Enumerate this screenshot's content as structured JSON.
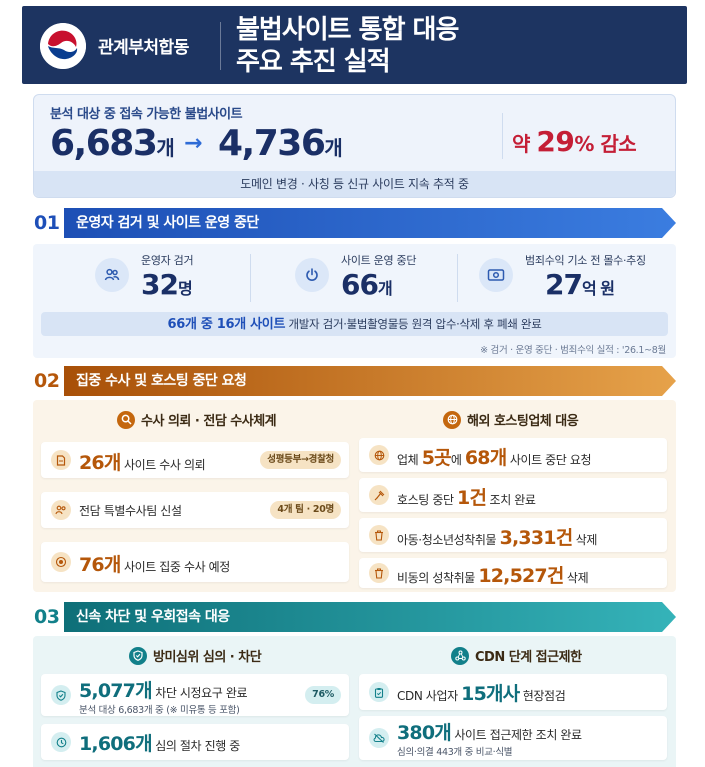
{
  "header": {
    "gov_name": "관계부처합동",
    "title_line1": "불법사이트 통합 대응",
    "title_line2": "주요 추진 실적"
  },
  "summary": {
    "label": "분석 대상 중 접속 가능한 불법사이트",
    "before_value": "6,683",
    "before_unit": "개",
    "after_value": "4,736",
    "after_unit": "개",
    "reduction_prefix": "약 ",
    "reduction_pct": "29",
    "reduction_suffix": "% 감소",
    "note": "도메인 변경 · 사칭 등 신규 사이트 지속 추적 중"
  },
  "section1": {
    "num": "01",
    "title": "운영자 검거 및 사이트 운영 중단",
    "stats": [
      {
        "label": "운영자 검거",
        "value": "32",
        "unit": "명",
        "icon": "people-icon"
      },
      {
        "label": "사이트 운영 중단",
        "value": "66",
        "unit": "개",
        "icon": "power-icon"
      },
      {
        "label": "범죄수익 기소 전 몰수·추징",
        "value": "27",
        "unit": "억 원",
        "icon": "money-icon"
      }
    ],
    "strip_highlight": "66개 중 16개 사이트",
    "strip_text": " 개발자 검거·불법촬영물등 원격 압수·삭제 후 폐쇄 완료",
    "footnote": "※ 검거 · 운영 중단 · 범죄수익 실적 : '26.1~8월"
  },
  "section2": {
    "num": "02",
    "title": "집중 수사 및 호스팅 중단 요청",
    "left_head": "수사 의뢰 · 전담 수사체계",
    "right_head": "해외 호스팅업체 대응",
    "left_cards": [
      {
        "big": "26개",
        "text": " 사이트 수사 의뢰",
        "pill": "성평등부→경찰청"
      },
      {
        "big": "",
        "text": "전담 특별수사팀 신설",
        "pill": "4개 팀 · 20명"
      },
      {
        "big": "76개",
        "text": " 사이트 집중 수사 예정",
        "pill": ""
      }
    ],
    "right_cards": [
      {
        "pre": "업체 ",
        "big1": "5곳",
        "mid": "에 ",
        "big2": "68개",
        "post": " 사이트 중단 요청"
      },
      {
        "pre": "호스팅 중단 ",
        "big1": "1건",
        "mid": "",
        "big2": "",
        "post": " 조치 완료"
      },
      {
        "pre": "아동·청소년성착취물 ",
        "big1": "3,331건",
        "mid": "",
        "big2": "",
        "post": " 삭제"
      },
      {
        "pre": "비동의 성착취물 ",
        "big1": "12,527건",
        "mid": "",
        "big2": "",
        "post": " 삭제"
      }
    ]
  },
  "section3": {
    "num": "03",
    "title": "신속 차단 및 우회접속 대응",
    "left_head": "방미심위 심의 · 차단",
    "right_head": "CDN 단계 접근제한",
    "left_cards": [
      {
        "big": "5,077개",
        "text": " 차단 시정요구 완료",
        "sub": "분석 대상 6,683개 중 (※ 미유통 등 포함)",
        "pill": "76%"
      },
      {
        "big": "1,606개",
        "text": " 심의 절차 진행 중",
        "sub": "",
        "pill": ""
      }
    ],
    "right_cards": [
      {
        "pre": "CDN 사업자 ",
        "big": "15개사",
        "post": " 현장점검",
        "sub": ""
      },
      {
        "pre": "",
        "big": "380개",
        "post": " 사이트 접근제한 조치 완료",
        "sub": "심의·의결 443개 중 비교·식별"
      }
    ]
  },
  "colors": {
    "navy": "#1d3461",
    "blue": "#2e6bd6",
    "orange": "#c4670e",
    "teal": "#12808a",
    "red": "#c41e36"
  }
}
